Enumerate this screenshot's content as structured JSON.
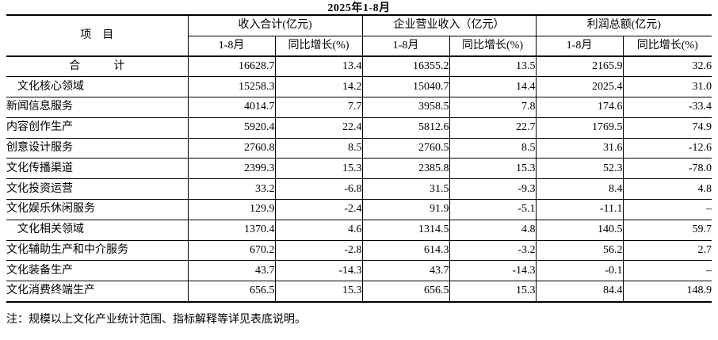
{
  "title": "2025年1-8月",
  "table": {
    "header": {
      "item_label": "项　目",
      "groups": [
        {
          "label": "收入合计(亿元)",
          "sub": [
            "1-8月",
            "同比增长(%)"
          ]
        },
        {
          "label": "企业营业收入（亿元）",
          "sub": [
            "1-8月",
            "同比增长(%)"
          ]
        },
        {
          "label": "利润总额(亿元)",
          "sub": [
            "1-8月",
            "同比增长(%)"
          ]
        }
      ]
    },
    "rows": [
      {
        "label": "合　　　计",
        "style": "total",
        "values": [
          "16628.7",
          "13.4",
          "16355.2",
          "13.5",
          "2165.9",
          "32.6"
        ]
      },
      {
        "label": "文化核心领域",
        "style": "category",
        "values": [
          "15258.3",
          "14.2",
          "15040.7",
          "14.4",
          "2025.4",
          "31.0"
        ]
      },
      {
        "label": "新闻信息服务",
        "style": "item",
        "values": [
          "4014.7",
          "7.7",
          "3958.5",
          "7.8",
          "174.6",
          "-33.4"
        ]
      },
      {
        "label": "内容创作生产",
        "style": "item",
        "values": [
          "5920.4",
          "22.4",
          "5812.6",
          "22.7",
          "1769.5",
          "74.9"
        ]
      },
      {
        "label": "创意设计服务",
        "style": "item",
        "values": [
          "2760.8",
          "8.5",
          "2760.5",
          "8.5",
          "31.6",
          "-12.6"
        ]
      },
      {
        "label": "文化传播渠道",
        "style": "item",
        "values": [
          "2399.3",
          "15.3",
          "2385.8",
          "15.3",
          "52.3",
          "-78.0"
        ]
      },
      {
        "label": "文化投资运营",
        "style": "item",
        "values": [
          "33.2",
          "-6.8",
          "31.5",
          "-9.3",
          "8.4",
          "4.8"
        ]
      },
      {
        "label": "文化娱乐休闲服务",
        "style": "item",
        "values": [
          "129.9",
          "-2.4",
          "91.9",
          "-5.1",
          "-11.1",
          "–"
        ]
      },
      {
        "label": "文化相关领域",
        "style": "category",
        "values": [
          "1370.4",
          "4.6",
          "1314.5",
          "4.8",
          "140.5",
          "59.7"
        ]
      },
      {
        "label": "文化辅助生产和中介服务",
        "style": "item",
        "values": [
          "670.2",
          "-2.8",
          "614.3",
          "-3.2",
          "56.2",
          "2.7"
        ]
      },
      {
        "label": "文化装备生产",
        "style": "item",
        "values": [
          "43.7",
          "-14.3",
          "43.7",
          "-14.3",
          "-0.1",
          "–"
        ]
      },
      {
        "label": "文化消费终端生产",
        "style": "item",
        "values": [
          "656.5",
          "15.3",
          "656.5",
          "15.3",
          "84.4",
          "148.9"
        ]
      }
    ]
  },
  "note": "注：规模以上文化产业统计范围、指标解释等详见表底说明。",
  "colors": {
    "text": "#000000",
    "background": "#ffffff",
    "border": "#000000"
  }
}
